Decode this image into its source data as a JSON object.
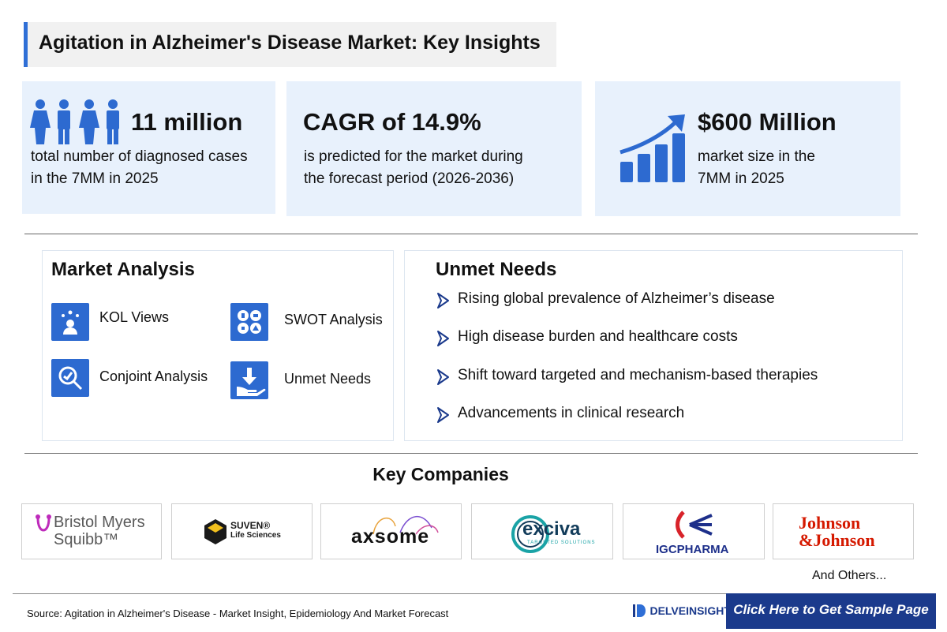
{
  "title": "Agitation in Alzheimer's Disease Market: Key Insights",
  "stats": [
    {
      "value": "11 million",
      "description": [
        "total number of diagnosed cases",
        "in the 7MM in 2025"
      ],
      "icon": "people-icon"
    },
    {
      "value": "CAGR of 14.9%",
      "description": [
        "is predicted for the market during",
        "the forecast period (2026-2036)"
      ],
      "icon": ""
    },
    {
      "value": "$600 Million",
      "description": [
        "market size in the",
        "7MM in 2025"
      ],
      "icon": "growth-chart-icon"
    }
  ],
  "market_analysis": {
    "title": "Market Analysis",
    "items": [
      {
        "label": "KOL Views",
        "icon": "kol-views-icon"
      },
      {
        "label": "SWOT Analysis",
        "icon": "swot-analysis-icon"
      },
      {
        "label": "Conjoint Analysis",
        "icon": "conjoint-analysis-icon"
      },
      {
        "label": "Unmet Needs",
        "icon": "unmet-needs-icon"
      }
    ]
  },
  "unmet_needs": {
    "title": "Unmet Needs",
    "items": [
      "Rising global prevalence of Alzheimer’s disease",
      "High disease burden and healthcare costs",
      "Shift toward targeted and mechanism-based therapies",
      "Advancements in clinical research"
    ]
  },
  "key_companies": {
    "title": "Key Companies",
    "logos": [
      {
        "name": [
          "Bristol Myers",
          "Squibb™"
        ],
        "color": "#595959",
        "accent": "#be2bbb"
      },
      {
        "name": [
          "SUVEN®",
          "Life Sciences"
        ],
        "color": "#1a1a1a",
        "accent": "#f2c01e"
      },
      {
        "name": [
          "axsome"
        ],
        "color": "#111111",
        "accent": "#7b4fd0"
      },
      {
        "name": [
          "exciva",
          "TARGETED SOLUTIONS"
        ],
        "color": "#123c5a",
        "accent": "#1aa3a6"
      },
      {
        "name": [
          "IGCPHARMA"
        ],
        "color": "#1d2f8a",
        "accent": "#d8232a"
      },
      {
        "name": [
          "Johnson",
          "&Johnson"
        ],
        "color": "#d51900",
        "accent": "#d51900"
      }
    ],
    "others": "And Others..."
  },
  "footer": {
    "source": "Source: Agitation in Alzheimer's Disease - Market Insight, Epidemiology And Market Forecast",
    "brand": "DELVEINSIGHT",
    "cta": "Click Here to Get Sample Page"
  },
  "colors": {
    "accent": "#2f6fd6",
    "card_bg": "#e8f1fc",
    "cta_bg": "#1b3a8c",
    "icon_blue": "#2d6ad0"
  }
}
